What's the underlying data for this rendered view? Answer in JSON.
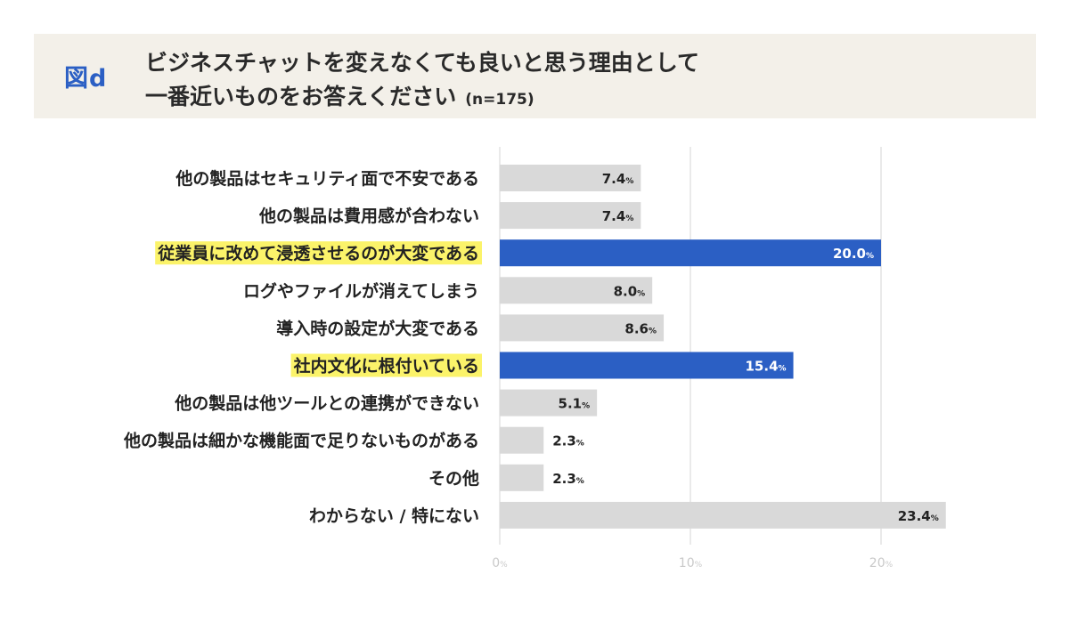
{
  "header": {
    "figure_label": "図d",
    "title_line1": "ビジネスチャットを変えなくても良いと思う理由として",
    "title_line2": "一番近いものをお答えください",
    "sample_size": "(n=175)"
  },
  "chart_data": {
    "type": "bar",
    "orientation": "horizontal",
    "title": "ビジネスチャットを変えなくても良いと思う理由として一番近いものをお答えください",
    "categories": [
      "他の製品はセキュリティ面で不安である",
      "他の製品は費用感が合わない",
      "従業員に改めて浸透させるのが大変である",
      "ログやファイルが消えてしまう",
      "導入時の設定が大変である",
      "社内文化に根付いている",
      "他の製品は他ツールとの連携ができない",
      "他の製品は細かな機能面で足りないものがある",
      "その他",
      "わからない / 特にない"
    ],
    "values": [
      7.4,
      7.4,
      20.0,
      8.0,
      8.6,
      15.4,
      5.1,
      2.3,
      2.3,
      23.4
    ],
    "value_labels": [
      "7.4",
      "7.4",
      "20.0",
      "8.0",
      "8.6",
      "15.4",
      "5.1",
      "2.3",
      "2.3",
      "23.4"
    ],
    "highlighted": [
      false,
      false,
      true,
      false,
      false,
      true,
      false,
      false,
      false,
      false
    ],
    "unit": "%",
    "xlim": [
      0,
      25
    ],
    "xticks": [
      0,
      10,
      20
    ],
    "xtick_labels": [
      "0",
      "10",
      "20"
    ],
    "grid": true,
    "colors": {
      "bar": "#d9d9d9",
      "bar_highlight": "#2b5fc4",
      "label_highlight": "#fbf36a",
      "value_text": "#222222",
      "value_text_highlight": "#ffffff",
      "grid": "#e3e3e3",
      "tick_text": "#c9c9c9"
    }
  }
}
